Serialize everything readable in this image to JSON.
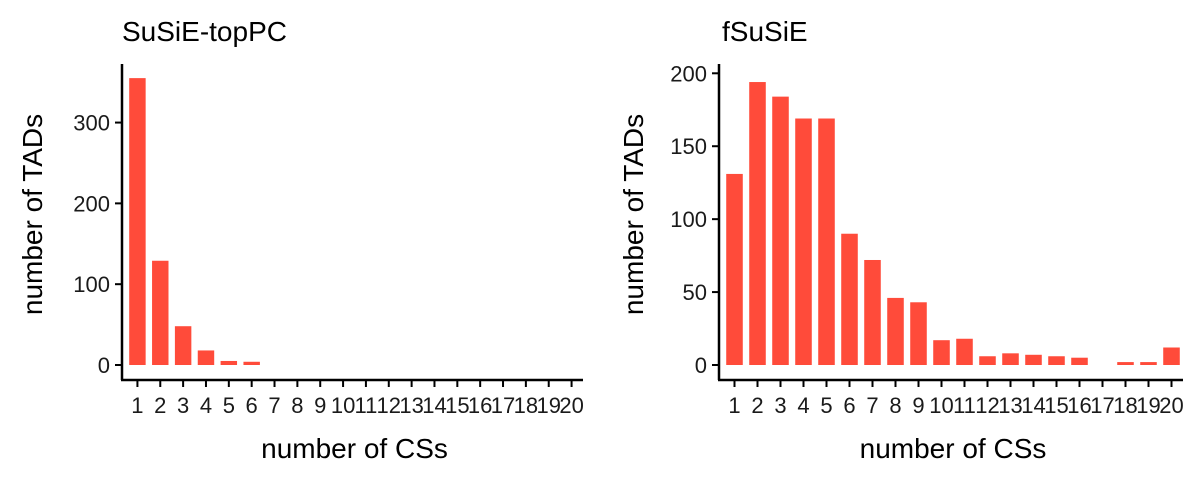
{
  "chart_data": [
    {
      "type": "bar",
      "title": "SuSiE-topPC",
      "xlabel": "number of CSs",
      "ylabel": "number of TADs",
      "categories": [
        "1",
        "2",
        "3",
        "4",
        "5",
        "6",
        "7",
        "8",
        "9",
        "10",
        "11",
        "12",
        "13",
        "14",
        "15",
        "16",
        "17",
        "18",
        "19",
        "20"
      ],
      "values": [
        355,
        129,
        48,
        18,
        5,
        4,
        0,
        0,
        0,
        0,
        0,
        0,
        0,
        0,
        0,
        0,
        0,
        0,
        0,
        0
      ],
      "yticks": [
        0,
        100,
        200,
        300
      ],
      "ylim": [
        0,
        370
      ],
      "bar_color": "#FF4B3A"
    },
    {
      "type": "bar",
      "title": "fSuSiE",
      "xlabel": "number of CSs",
      "ylabel": "number of TADs",
      "categories": [
        "1",
        "2",
        "3",
        "4",
        "5",
        "6",
        "7",
        "8",
        "9",
        "10",
        "11",
        "12",
        "13",
        "14",
        "15",
        "16",
        "17",
        "18",
        "19",
        "20"
      ],
      "values": [
        131,
        194,
        184,
        169,
        169,
        90,
        72,
        46,
        43,
        17,
        18,
        6,
        8,
        7,
        6,
        5,
        0,
        2,
        2,
        12
      ],
      "yticks": [
        0,
        50,
        100,
        150,
        200
      ],
      "ylim": [
        0,
        205
      ],
      "bar_color": "#FF4B3A"
    }
  ]
}
